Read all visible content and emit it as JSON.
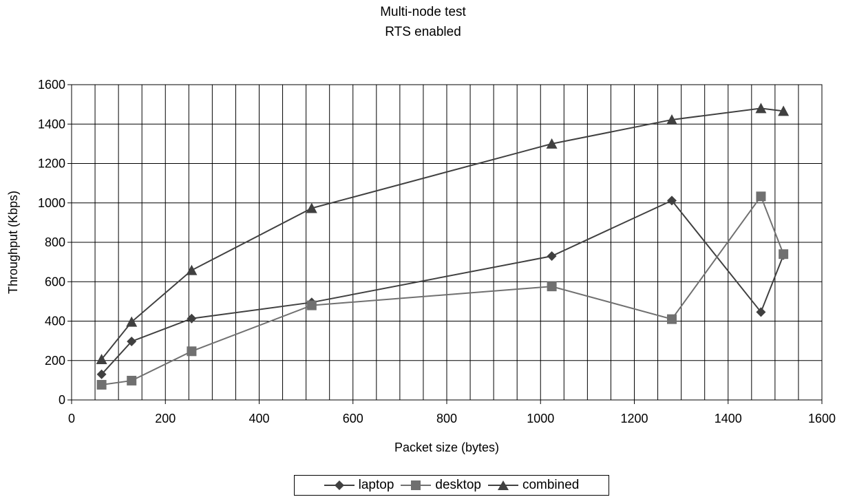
{
  "chart_data": {
    "type": "line",
    "title": "Multi-node test",
    "subtitle": "RTS enabled",
    "xlabel": "Packet size (bytes)",
    "ylabel": "Throughput (Kbps)",
    "xlim": [
      0,
      1600
    ],
    "ylim": [
      0,
      1600
    ],
    "x_ticks": [
      0,
      200,
      400,
      600,
      800,
      1000,
      1200,
      1400,
      1600
    ],
    "y_ticks": [
      0,
      200,
      400,
      600,
      800,
      1000,
      1200,
      1400,
      1600
    ],
    "x_minor_step": 50,
    "grid": true,
    "legend_position": "bottom",
    "x": [
      64,
      128,
      256,
      512,
      1024,
      1280,
      1470,
      1518
    ],
    "series": [
      {
        "name": "laptop",
        "marker": "diamond",
        "color": "#404040",
        "values": [
          130,
          297,
          413,
          495,
          730,
          1012,
          446,
          735
        ]
      },
      {
        "name": "desktop",
        "marker": "square",
        "color": "#707070",
        "values": [
          77,
          98,
          247,
          480,
          576,
          410,
          1033,
          740
        ]
      },
      {
        "name": "combined",
        "marker": "triangle",
        "color": "#404040",
        "values": [
          206,
          396,
          658,
          973,
          1300,
          1422,
          1480,
          1466
        ]
      }
    ]
  }
}
